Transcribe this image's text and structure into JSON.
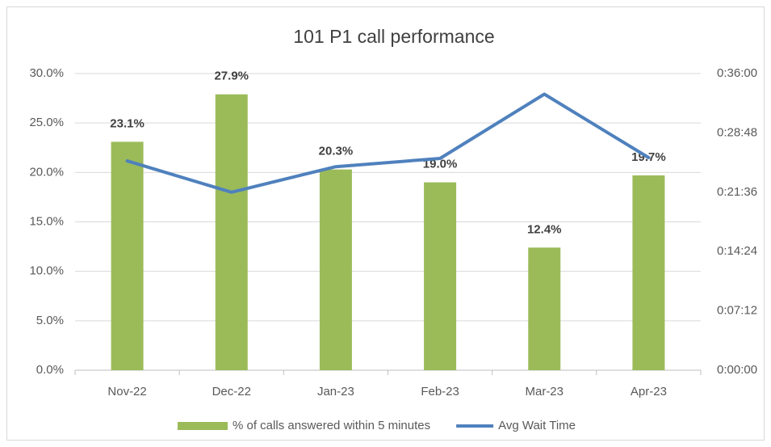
{
  "chart_data": {
    "type": "bar_line",
    "title": "101 P1 call performance",
    "categories": [
      "Nov-22",
      "Dec-22",
      "Jan-23",
      "Feb-23",
      "Mar-23",
      "Apr-23"
    ],
    "series": [
      {
        "name": "% of calls answered within 5 minutes",
        "type": "bar",
        "color": "#9bbb59",
        "values": [
          23.1,
          27.9,
          20.3,
          19.0,
          12.4,
          19.7
        ],
        "value_labels": [
          "23.1%",
          "27.9%",
          "20.3%",
          "19.0%",
          "12.4%",
          "19.7%"
        ]
      },
      {
        "name": "Avg Wait Time",
        "type": "line",
        "color": "#4f81bd",
        "axis": "y2",
        "values": [
          25.4,
          21.6,
          24.7,
          25.7,
          33.5,
          25.8
        ]
      }
    ],
    "ylim": [
      0,
      30
    ],
    "yticks": [
      {
        "value": 0,
        "label": "0.0%"
      },
      {
        "value": 5,
        "label": "5.0%"
      },
      {
        "value": 10,
        "label": "10.0%"
      },
      {
        "value": 15,
        "label": "15.0%"
      },
      {
        "value": 20,
        "label": "20.0%"
      },
      {
        "value": 25,
        "label": "25.0%"
      },
      {
        "value": 30,
        "label": "30.0%"
      }
    ],
    "y2lim": [
      0,
      36
    ],
    "y2ticks": [
      {
        "value": 0,
        "label": "0:00:00"
      },
      {
        "value": 7.2,
        "label": "0:07:12"
      },
      {
        "value": 14.4,
        "label": "0:14:24"
      },
      {
        "value": 21.6,
        "label": "0:21:36"
      },
      {
        "value": 28.8,
        "label": "0:28:48"
      },
      {
        "value": 36,
        "label": "0:36:00"
      }
    ],
    "grid": true,
    "legend": "bottom"
  }
}
